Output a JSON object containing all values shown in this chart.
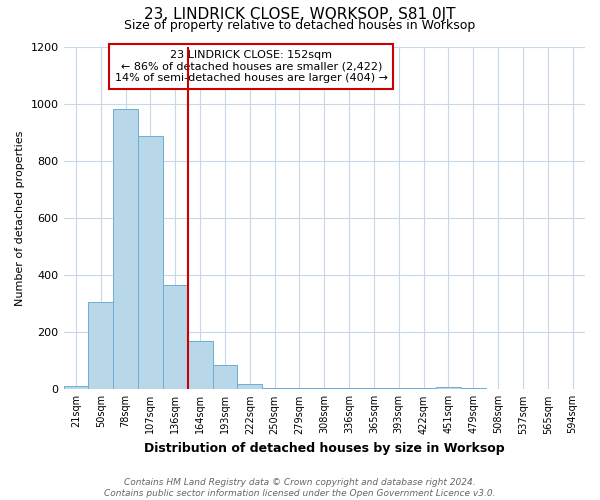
{
  "title": "23, LINDRICK CLOSE, WORKSOP, S81 0JT",
  "subtitle": "Size of property relative to detached houses in Worksop",
  "xlabel": "Distribution of detached houses by size in Worksop",
  "ylabel": "Number of detached properties",
  "bin_labels": [
    "21sqm",
    "50sqm",
    "78sqm",
    "107sqm",
    "136sqm",
    "164sqm",
    "193sqm",
    "222sqm",
    "250sqm",
    "279sqm",
    "308sqm",
    "336sqm",
    "365sqm",
    "393sqm",
    "422sqm",
    "451sqm",
    "479sqm",
    "508sqm",
    "537sqm",
    "565sqm",
    "594sqm"
  ],
  "bar_values": [
    10,
    305,
    980,
    885,
    365,
    170,
    85,
    20,
    5,
    3,
    3,
    3,
    3,
    3,
    3,
    8,
    5,
    0,
    0,
    0,
    0
  ],
  "bar_color": "#b8d8ea",
  "bar_edge_color": "#6baed6",
  "vline_x": 4.5,
  "vline_color": "#cc0000",
  "annotation_text": "23 LINDRICK CLOSE: 152sqm\n← 86% of detached houses are smaller (2,422)\n14% of semi-detached houses are larger (404) →",
  "annotation_box_color": "#cc0000",
  "ylim": [
    0,
    1200
  ],
  "yticks": [
    0,
    200,
    400,
    600,
    800,
    1000,
    1200
  ],
  "footer": "Contains HM Land Registry data © Crown copyright and database right 2024.\nContains public sector information licensed under the Open Government Licence v3.0.",
  "bg_color": "#ffffff",
  "grid_color": "#c8d8e8",
  "title_fontsize": 11,
  "subtitle_fontsize": 9,
  "ylabel_fontsize": 8,
  "xlabel_fontsize": 9,
  "xtick_fontsize": 7,
  "ytick_fontsize": 8,
  "footer_fontsize": 6.5,
  "annot_fontsize": 8
}
